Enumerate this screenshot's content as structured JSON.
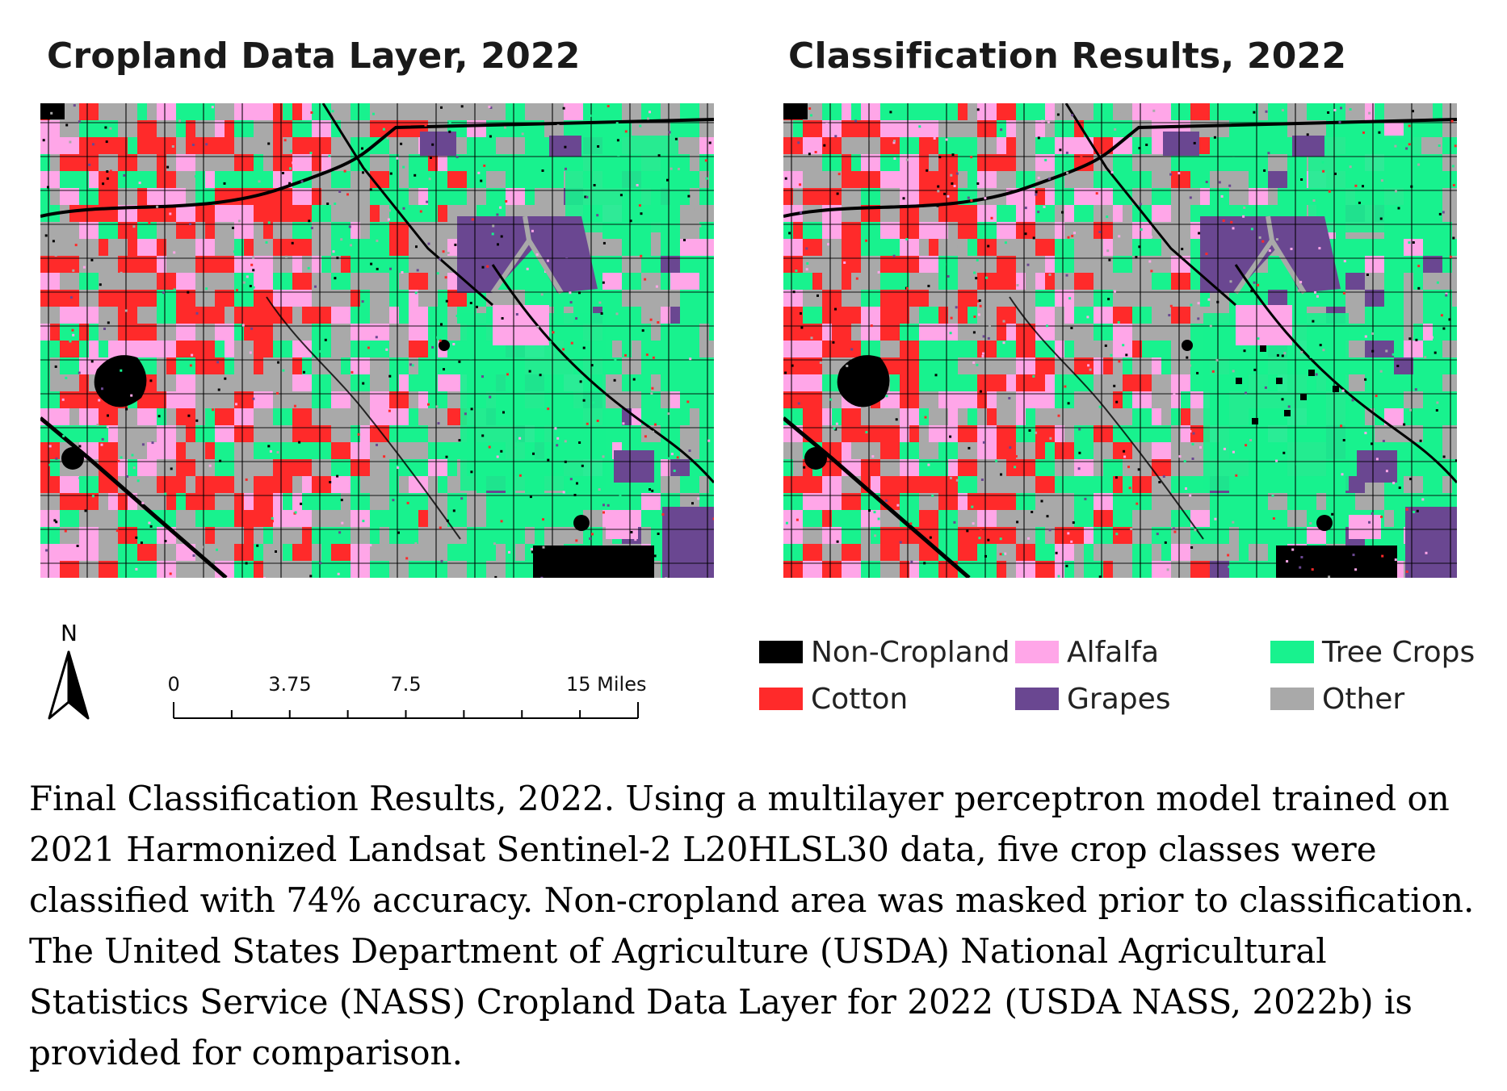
{
  "titles": {
    "left": "Cropland Data Layer, 2022",
    "right": "Classification Results, 2022"
  },
  "north_arrow": {
    "label": "N"
  },
  "scale_bar": {
    "labels": [
      {
        "text": "0",
        "value": 0
      },
      {
        "text": "3.75",
        "value": 3.75
      },
      {
        "text": "7.5",
        "value": 7.5
      },
      {
        "text": "15 Miles",
        "value": 15
      }
    ]
  },
  "legend": [
    {
      "label": "Non-Cropland",
      "color": "#000000"
    },
    {
      "label": "Cotton",
      "color": "#ff2a2a"
    },
    {
      "label": "Alfalfa",
      "color": "#ffa6e8"
    },
    {
      "label": "Grapes",
      "color": "#6a4791"
    },
    {
      "label": "Tree Crops",
      "color": "#18f28e"
    },
    {
      "label": "Other",
      "color": "#a9a9a9"
    }
  ],
  "caption": [
    "Final Classification Results, 2022. Using a multilayer perceptron model trained on",
    "2021 Harmonized Landsat Sentinel-2 L20HLSL30 data, five crop classes were",
    "classified with 74% accuracy. Non-cropland area was masked prior to classification.",
    "The United States Department of Agriculture (USDA) National Agricultural",
    "Statistics Service (NASS) Cropland Data Layer for 2022 (USDA NASS, 2022b) is",
    "provided for comparison."
  ]
}
